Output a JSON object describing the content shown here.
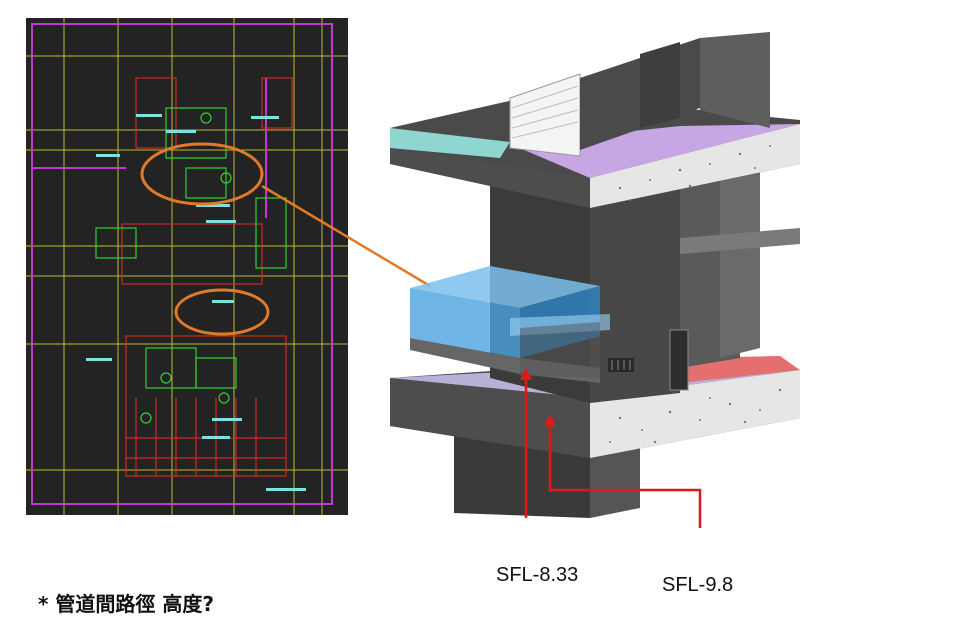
{
  "labels": {
    "level_upper": "SFL-8.33",
    "level_lower": "SFL-9.8",
    "note": "* 管道間路徑 高度?"
  },
  "colors": {
    "cad_background": "#232323",
    "highlight_ellipse": "#e07a2a",
    "level_arrow": "#e01818",
    "duct_blue": "#4ba3e0",
    "slab_concrete": "#e6e6e6",
    "wall_dark": "#4a4a4a"
  }
}
